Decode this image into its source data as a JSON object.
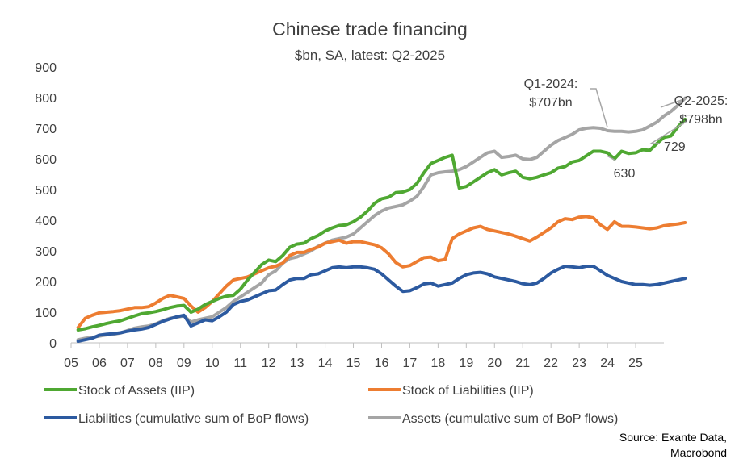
{
  "chart_data": {
    "type": "line",
    "title": "Chinese trade financing",
    "subtitle": "$bn, SA, latest: Q2-2025",
    "ylim": [
      0,
      900
    ],
    "yticks": [
      0,
      100,
      200,
      300,
      400,
      500,
      600,
      700,
      800,
      900
    ],
    "xlim": [
      2005,
      2026
    ],
    "xticks": [
      {
        "value": 2005,
        "label": "05"
      },
      {
        "value": 2006,
        "label": "06"
      },
      {
        "value": 2007,
        "label": "07"
      },
      {
        "value": 2008,
        "label": "08"
      },
      {
        "value": 2009,
        "label": "09"
      },
      {
        "value": 2010,
        "label": "10"
      },
      {
        "value": 2011,
        "label": "11"
      },
      {
        "value": 2012,
        "label": "12"
      },
      {
        "value": 2013,
        "label": "13"
      },
      {
        "value": 2014,
        "label": "14"
      },
      {
        "value": 2015,
        "label": "15"
      },
      {
        "value": 2016,
        "label": "16"
      },
      {
        "value": 2017,
        "label": "17"
      },
      {
        "value": 2018,
        "label": "18"
      },
      {
        "value": 2019,
        "label": "19"
      },
      {
        "value": 2020,
        "label": "20"
      },
      {
        "value": 2021,
        "label": "21"
      },
      {
        "value": 2022,
        "label": "22"
      },
      {
        "value": 2023,
        "label": "23"
      },
      {
        "value": 2024,
        "label": "24"
      },
      {
        "value": 2025,
        "label": "25"
      }
    ],
    "x_start": 2005.25,
    "x_step": 0.25,
    "series": [
      {
        "name": "Stock of Assets (IIP)",
        "color": "#4fa832",
        "values": [
          42,
          46,
          52,
          57,
          63,
          68,
          72,
          80,
          88,
          95,
          98,
          102,
          108,
          115,
          120,
          122,
          100,
          110,
          125,
          135,
          145,
          152,
          155,
          175,
          205,
          230,
          255,
          270,
          265,
          285,
          312,
          322,
          325,
          340,
          350,
          365,
          375,
          383,
          385,
          395,
          410,
          430,
          455,
          470,
          475,
          490,
          492,
          500,
          520,
          555,
          585,
          595,
          605,
          612,
          505,
          510,
          525,
          540,
          555,
          565,
          548,
          555,
          560,
          540,
          535,
          540,
          548,
          555,
          570,
          575,
          590,
          595,
          610,
          625,
          625,
          620,
          600,
          625,
          618,
          620,
          630,
          628,
          650,
          670,
          675,
          705,
          729
        ]
      },
      {
        "name": "Stock of Liabilities (IIP)",
        "color": "#ed7d31",
        "values": [
          50,
          80,
          90,
          98,
          100,
          102,
          105,
          110,
          115,
          115,
          118,
          130,
          145,
          155,
          150,
          145,
          120,
          100,
          115,
          135,
          160,
          185,
          205,
          210,
          215,
          225,
          235,
          245,
          250,
          260,
          285,
          295,
          295,
          305,
          312,
          325,
          330,
          335,
          325,
          330,
          330,
          325,
          320,
          310,
          290,
          262,
          248,
          252,
          265,
          278,
          280,
          268,
          272,
          340,
          355,
          365,
          375,
          380,
          370,
          365,
          360,
          355,
          348,
          340,
          332,
          345,
          360,
          375,
          395,
          405,
          402,
          410,
          412,
          408,
          385,
          370,
          395,
          380,
          380,
          378,
          375,
          372,
          375,
          382,
          385,
          388,
          392
        ]
      },
      {
        "name": "Liabilities (cumulative sum of BoP flows)",
        "color": "#2c5aa0",
        "values": [
          5,
          10,
          15,
          25,
          28,
          30,
          33,
          38,
          42,
          45,
          50,
          60,
          70,
          78,
          85,
          90,
          55,
          65,
          75,
          72,
          85,
          100,
          125,
          135,
          140,
          150,
          160,
          170,
          172,
          190,
          205,
          210,
          210,
          222,
          225,
          235,
          245,
          248,
          245,
          248,
          248,
          245,
          240,
          225,
          205,
          185,
          168,
          170,
          180,
          192,
          195,
          185,
          190,
          195,
          210,
          222,
          228,
          230,
          225,
          215,
          210,
          205,
          200,
          193,
          190,
          195,
          210,
          228,
          240,
          250,
          248,
          245,
          250,
          250,
          235,
          220,
          210,
          200,
          195,
          190,
          190,
          188,
          190,
          195,
          200,
          205,
          210
        ]
      },
      {
        "name": "Assets (cumulative sum of BoP flows)",
        "color": "#a5a5a5",
        "values": [
          10,
          15,
          18,
          22,
          26,
          28,
          32,
          40,
          48,
          52,
          55,
          62,
          72,
          80,
          84,
          88,
          68,
          75,
          80,
          85,
          100,
          115,
          135,
          150,
          165,
          180,
          195,
          222,
          235,
          260,
          275,
          280,
          290,
          300,
          315,
          325,
          335,
          340,
          345,
          355,
          375,
          395,
          415,
          430,
          440,
          445,
          450,
          462,
          478,
          510,
          548,
          555,
          558,
          560,
          565,
          575,
          590,
          605,
          620,
          625,
          605,
          608,
          612,
          600,
          598,
          605,
          625,
          645,
          660,
          670,
          680,
          695,
          700,
          702,
          700,
          692,
          690,
          690,
          688,
          690,
          695,
          707,
          720,
          740,
          755,
          775,
          798
        ]
      }
    ],
    "annotations": [
      {
        "lines": [
          "Q1-2024:",
          "$707bn"
        ],
        "series": "Assets (cumulative sum of BoP flows)"
      },
      {
        "lines": [
          "Q2-2025:",
          "$798bn"
        ],
        "series": "Assets (cumulative sum of BoP flows)"
      },
      {
        "lines": [
          "630"
        ],
        "series": "Stock of Assets (IIP)"
      },
      {
        "lines": [
          "729"
        ],
        "series": "Stock of Assets (IIP)"
      }
    ],
    "source_lines": [
      "Source: Exante Data,",
      "Macrobond"
    ]
  }
}
